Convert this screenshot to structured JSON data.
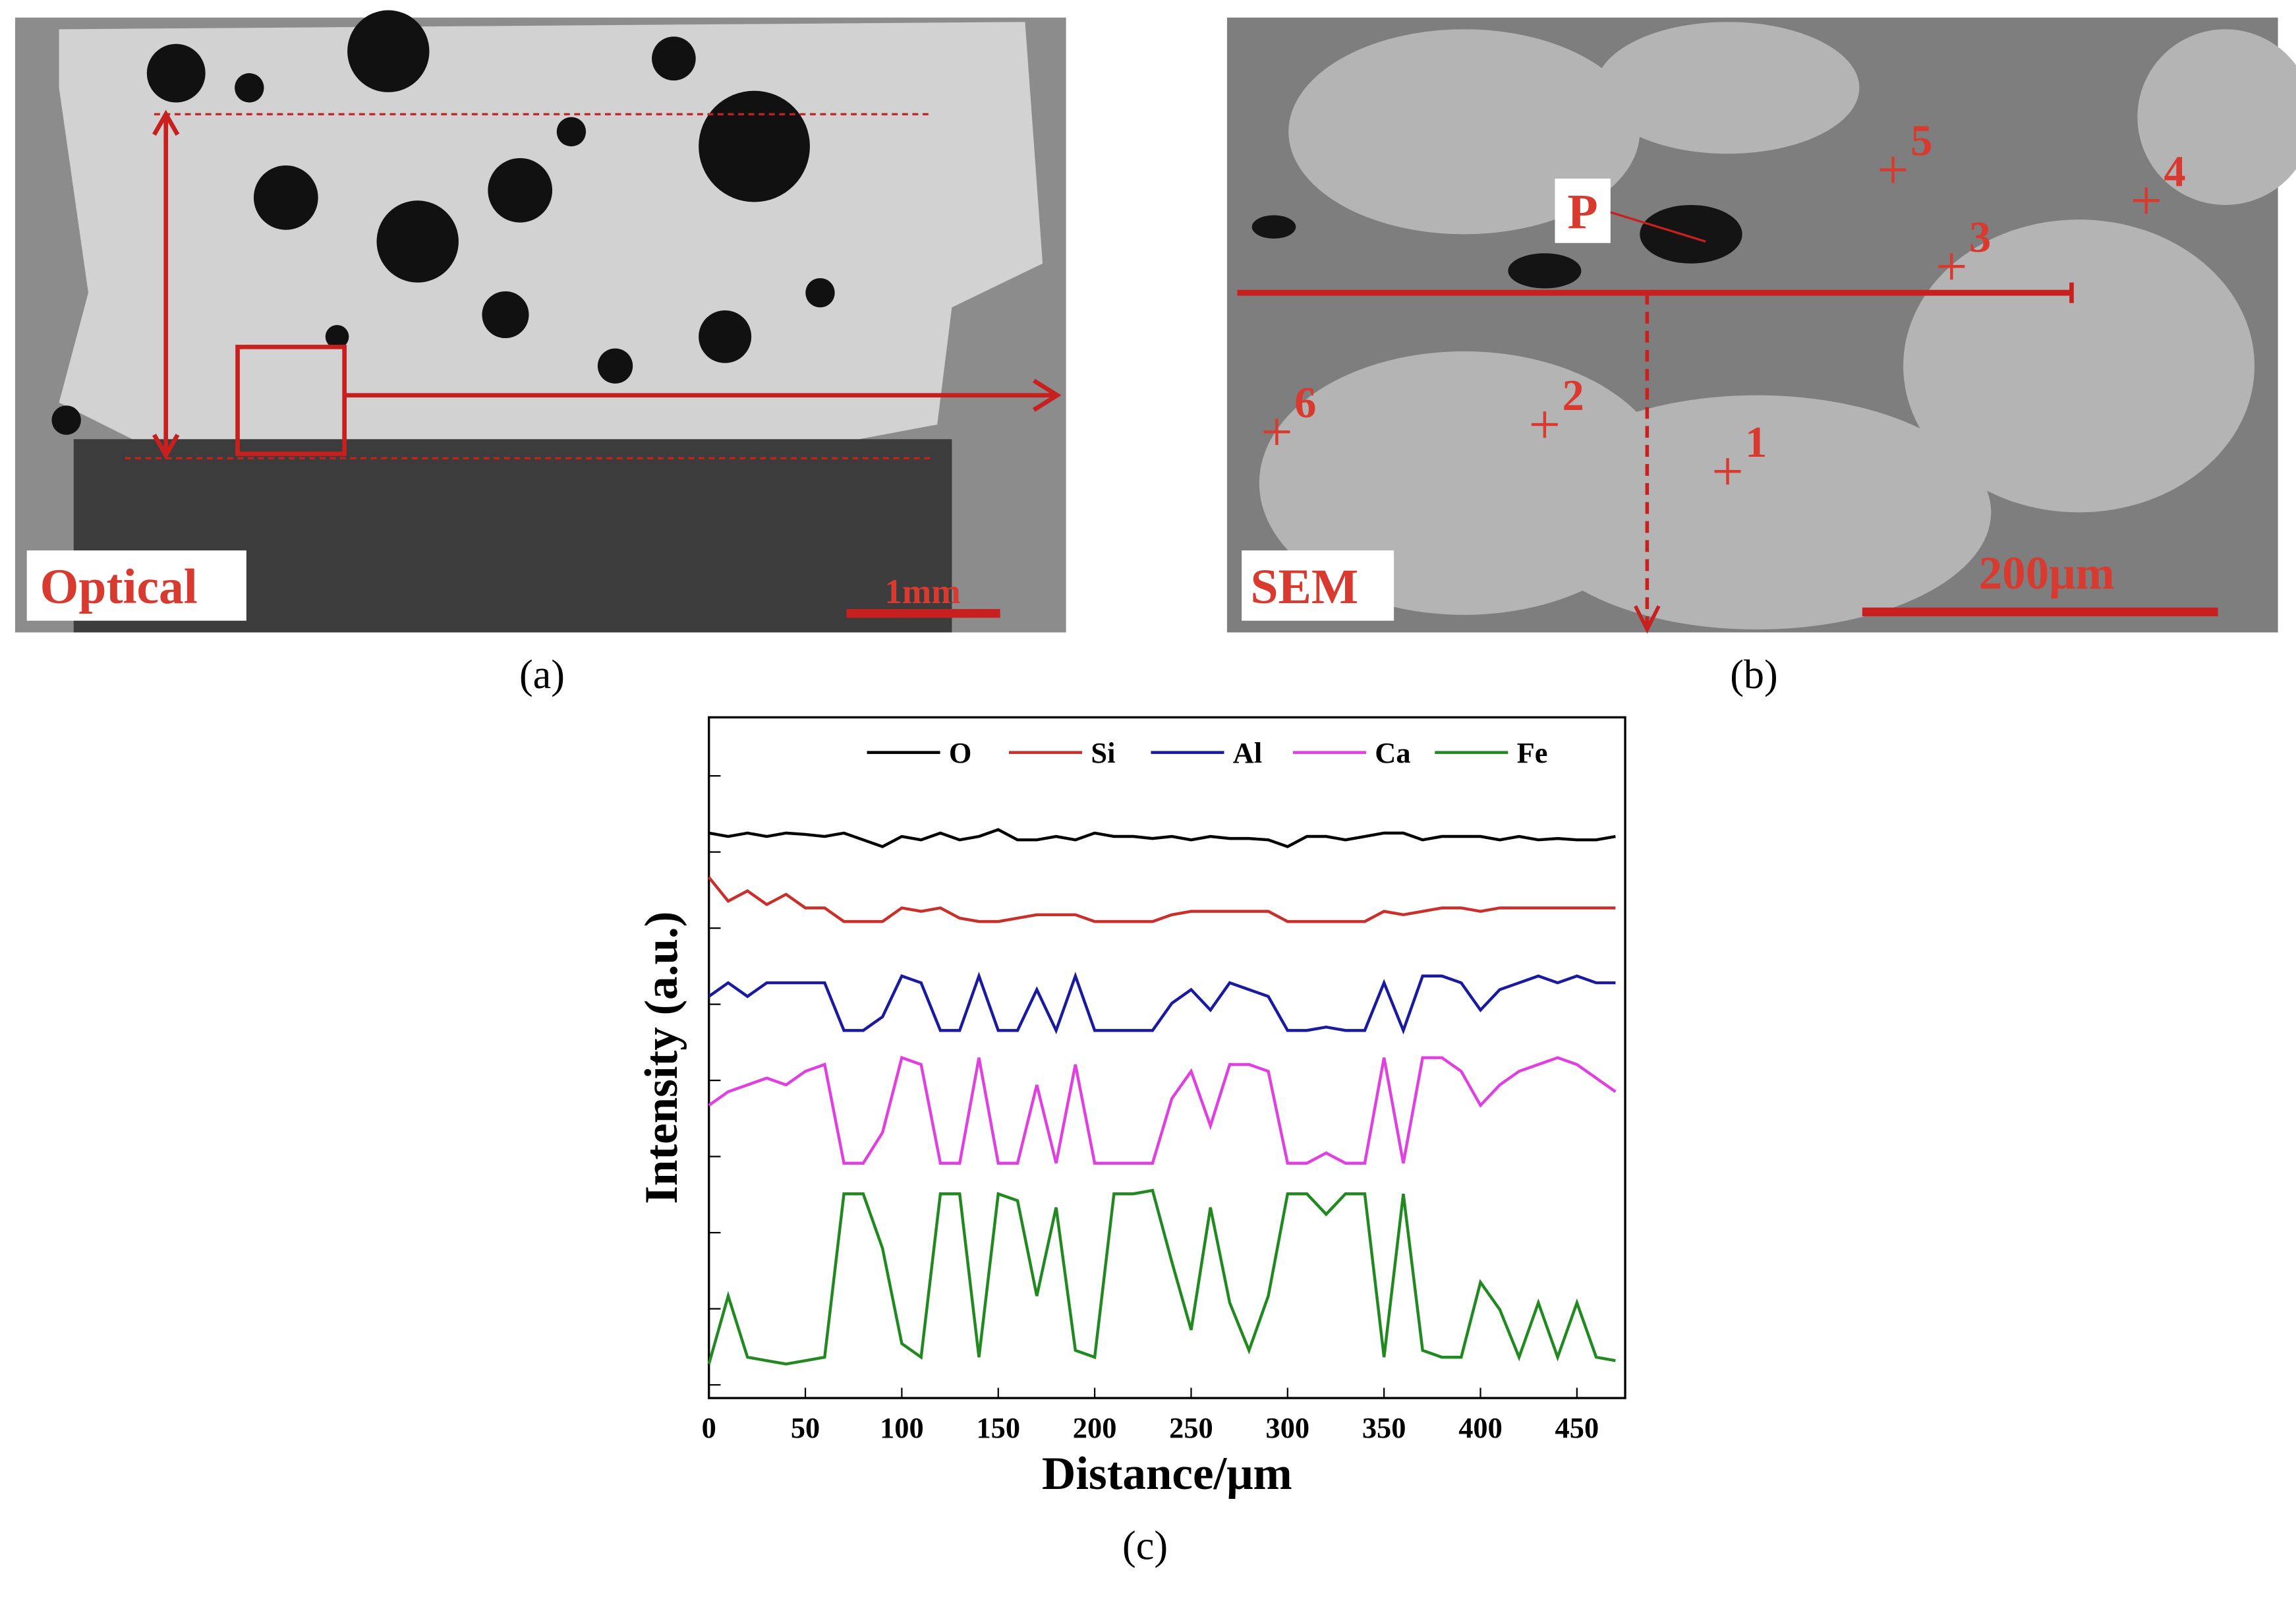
{
  "panels": [
    {
      "caption": "(a)",
      "label": "Optical",
      "scale_bar": "1mm"
    },
    {
      "caption": "(b)",
      "label": "SEM",
      "scale_bar": "200μm",
      "point": "P",
      "markers": [
        "1",
        "2",
        "3",
        "4",
        "5",
        "6"
      ]
    }
  ],
  "chart_data": {
    "type": "line",
    "caption": "(c)",
    "xlabel": "Distance/μm",
    "ylabel": "Intensity (a.u.)",
    "x": [
      0,
      10,
      20,
      30,
      40,
      50,
      60,
      70,
      80,
      90,
      100,
      110,
      120,
      130,
      140,
      150,
      160,
      170,
      180,
      190,
      200,
      210,
      220,
      230,
      240,
      250,
      260,
      270,
      280,
      290,
      300,
      310,
      320,
      330,
      340,
      350,
      360,
      370,
      380,
      390,
      400,
      410,
      420,
      430,
      440,
      450,
      460,
      470
    ],
    "series": [
      {
        "name": "O",
        "color": "#000000",
        "values": [
          8.3,
          8.25,
          8.3,
          8.25,
          8.3,
          8.28,
          8.25,
          8.3,
          8.2,
          8.1,
          8.25,
          8.2,
          8.3,
          8.2,
          8.25,
          8.35,
          8.2,
          8.2,
          8.25,
          8.2,
          8.3,
          8.25,
          8.25,
          8.22,
          8.25,
          8.2,
          8.25,
          8.22,
          8.22,
          8.2,
          8.1,
          8.25,
          8.25,
          8.2,
          8.25,
          8.3,
          8.3,
          8.2,
          8.25,
          8.25,
          8.25,
          8.2,
          8.25,
          8.2,
          8.22,
          8.2,
          8.2,
          8.25
        ]
      },
      {
        "name": "Si",
        "color": "#c8302c",
        "values": [
          7.65,
          7.3,
          7.45,
          7.25,
          7.4,
          7.2,
          7.2,
          7.0,
          7.0,
          7.0,
          7.2,
          7.15,
          7.2,
          7.05,
          7.0,
          7.0,
          7.05,
          7.1,
          7.1,
          7.1,
          7.0,
          7.0,
          7.0,
          7.0,
          7.1,
          7.15,
          7.15,
          7.15,
          7.15,
          7.15,
          7.0,
          7.0,
          7.0,
          7.0,
          7.0,
          7.15,
          7.1,
          7.15,
          7.2,
          7.2,
          7.15,
          7.2,
          7.2,
          7.2,
          7.2,
          7.2,
          7.2,
          7.2
        ]
      },
      {
        "name": "Al",
        "color": "#1a1aa0",
        "values": [
          5.9,
          6.1,
          5.9,
          6.1,
          6.1,
          6.1,
          6.1,
          5.4,
          5.4,
          5.6,
          6.2,
          6.1,
          5.4,
          5.4,
          6.2,
          5.4,
          5.4,
          6.0,
          5.4,
          6.2,
          5.4,
          5.4,
          5.4,
          5.4,
          5.8,
          6.0,
          5.7,
          6.1,
          6.0,
          5.9,
          5.4,
          5.4,
          5.45,
          5.4,
          5.4,
          6.1,
          5.4,
          6.2,
          6.2,
          6.1,
          5.7,
          6.0,
          6.1,
          6.2,
          6.1,
          6.2,
          6.1,
          6.1
        ]
      },
      {
        "name": "Ca",
        "color": "#e040e0",
        "values": [
          4.3,
          4.5,
          4.6,
          4.7,
          4.6,
          4.8,
          4.9,
          3.45,
          3.45,
          3.9,
          5.0,
          4.9,
          3.45,
          3.45,
          5.0,
          3.45,
          3.45,
          4.6,
          3.45,
          4.9,
          3.45,
          3.45,
          3.45,
          3.45,
          4.4,
          4.8,
          4.0,
          4.9,
          4.9,
          4.8,
          3.45,
          3.45,
          3.6,
          3.45,
          3.45,
          5.0,
          3.45,
          5.0,
          5.0,
          4.8,
          4.3,
          4.6,
          4.8,
          4.9,
          5.0,
          4.9,
          4.7,
          4.5
        ]
      },
      {
        "name": "Fe",
        "color": "#208a20",
        "values": [
          0.5,
          1.5,
          0.6,
          0.55,
          0.5,
          0.55,
          0.6,
          3.0,
          3.0,
          2.2,
          0.8,
          0.6,
          3.0,
          3.0,
          0.6,
          3.0,
          2.9,
          1.5,
          2.8,
          0.7,
          0.6,
          3.0,
          3.0,
          3.05,
          2.0,
          1.0,
          2.8,
          1.4,
          0.7,
          1.5,
          3.0,
          3.0,
          2.7,
          3.0,
          3.0,
          0.6,
          3.0,
          0.7,
          0.6,
          0.6,
          1.7,
          1.3,
          0.6,
          1.4,
          0.6,
          1.4,
          0.6,
          0.55
        ]
      }
    ],
    "xlim": [
      0,
      475
    ],
    "xticks": [
      0,
      50,
      100,
      150,
      200,
      250,
      300,
      350,
      400,
      450
    ],
    "ylim": [
      0,
      10
    ]
  }
}
